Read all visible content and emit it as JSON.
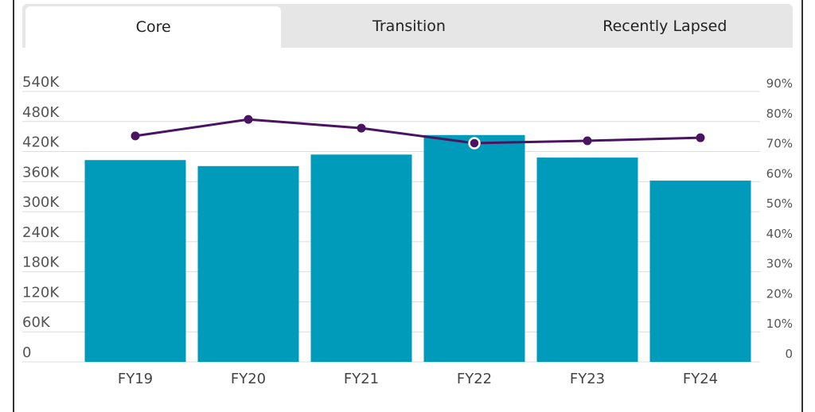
{
  "tabs": [
    {
      "label": "Core",
      "active": true
    },
    {
      "label": "Transition",
      "active": false
    },
    {
      "label": "Recently Lapsed",
      "active": false
    }
  ],
  "chart_data": {
    "type": "bar+line",
    "categories": [
      "FY19",
      "FY20",
      "FY21",
      "FY22",
      "FY23",
      "FY24"
    ],
    "series": [
      {
        "type": "bar",
        "axis": "left",
        "color": "#009bbb",
        "values": [
          403000,
          391000,
          414000,
          453000,
          408000,
          362000
        ]
      },
      {
        "type": "line",
        "axis": "right",
        "color": "#4a1460",
        "values": [
          75.2,
          80.7,
          77.8,
          72.8,
          73.6,
          74.6
        ],
        "highlighted_index": 3
      }
    ],
    "left_axis": {
      "ylim": [
        0,
        540000
      ],
      "ticks": [
        "0",
        "60K",
        "120K",
        "180K",
        "240K",
        "300K",
        "360K",
        "420K",
        "480K",
        "540K"
      ]
    },
    "right_axis": {
      "ylim": [
        0,
        90
      ],
      "ticks": [
        "0",
        "10%",
        "20%",
        "30%",
        "40%",
        "50%",
        "60%",
        "70%",
        "80%",
        "90%"
      ]
    },
    "grid": true
  }
}
